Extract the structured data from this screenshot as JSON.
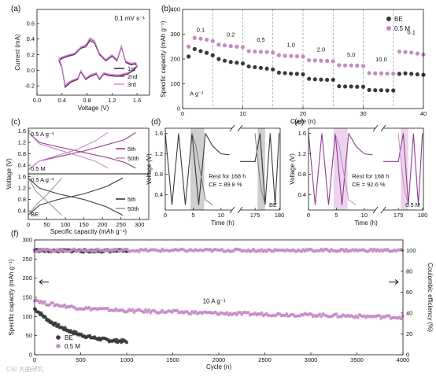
{
  "colors": {
    "be": "#3a3a3a",
    "be_light": "#9a9a9a",
    "m05": "#8e3d8e",
    "m05_light": "#c58ac5",
    "m05_pale": "#dcb8dc",
    "shade_grey": "#cfcfcf",
    "shade_pink": "#ecd3ec"
  },
  "watermark": "CSI 大曲研究",
  "chart_data": [
    {
      "id": "a",
      "panel": "(a)",
      "type": "line",
      "annotation": "0.1 mV s⁻¹",
      "xlabel": "Voltage (V)",
      "ylabel": "Current (mA)",
      "xlim": [
        0.0,
        1.8
      ],
      "ylim": [
        -0.32,
        0.78
      ],
      "xticks": [
        "0.0",
        "0.4",
        "0.8",
        "1.2",
        "1.6"
      ],
      "xtick_vals": [
        0,
        0.4,
        0.8,
        1.2,
        1.6
      ],
      "yticks": [
        "-0.2",
        "0.0",
        "0.2",
        "0.4",
        "0.6"
      ],
      "ytick_vals": [
        -0.2,
        0,
        0.2,
        0.4,
        0.6
      ],
      "series": [
        {
          "name": "1st",
          "color": "#5e1f5e",
          "x": [
            0.35,
            0.4,
            0.45,
            0.55,
            0.65,
            0.7,
            0.78,
            0.85,
            0.95,
            1.0,
            1.07,
            1.15,
            1.3,
            1.45,
            1.55,
            1.6,
            1.58,
            1.5,
            1.42,
            1.35,
            1.28,
            1.2,
            1.1,
            1.0,
            0.92,
            0.85,
            0.78,
            0.7,
            0.6,
            0.5,
            0.4,
            0.35
          ],
          "y": [
            0.12,
            0.03,
            -0.22,
            -0.15,
            -0.12,
            -0.02,
            -0.12,
            -0.08,
            -0.05,
            -0.12,
            -0.05,
            -0.07,
            -0.08,
            -0.05,
            0.0,
            0.05,
            0.08,
            0.07,
            0.1,
            0.3,
            0.12,
            0.18,
            0.12,
            0.2,
            0.35,
            0.38,
            0.3,
            0.28,
            0.2,
            0.18,
            0.15,
            0.12
          ]
        },
        {
          "name": "2nd",
          "color": "#9a4f9a",
          "x": [
            0.35,
            0.4,
            0.45,
            0.55,
            0.65,
            0.7,
            0.78,
            0.85,
            0.95,
            1.0,
            1.07,
            1.15,
            1.3,
            1.45,
            1.55,
            1.6,
            1.58,
            1.5,
            1.42,
            1.35,
            1.28,
            1.2,
            1.1,
            1.0,
            0.92,
            0.85,
            0.78,
            0.7,
            0.6,
            0.5,
            0.4,
            0.35
          ],
          "y": [
            0.14,
            0.04,
            -0.2,
            -0.14,
            -0.11,
            -0.01,
            -0.11,
            -0.07,
            -0.04,
            -0.11,
            -0.04,
            -0.06,
            -0.07,
            -0.04,
            0.01,
            0.06,
            0.09,
            0.08,
            0.11,
            0.3,
            0.13,
            0.19,
            0.13,
            0.21,
            0.37,
            0.4,
            0.32,
            0.29,
            0.21,
            0.19,
            0.16,
            0.14
          ]
        },
        {
          "name": "3rd",
          "color": "#d49ad4",
          "x": [
            0.35,
            0.4,
            0.45,
            0.55,
            0.65,
            0.7,
            0.78,
            0.85,
            0.95,
            1.0,
            1.07,
            1.15,
            1.3,
            1.45,
            1.55,
            1.6,
            1.58,
            1.5,
            1.42,
            1.35,
            1.28,
            1.2,
            1.1,
            1.0,
            0.92,
            0.85,
            0.78,
            0.7,
            0.6,
            0.5,
            0.4,
            0.35
          ],
          "y": [
            0.16,
            0.05,
            -0.18,
            -0.13,
            -0.1,
            0.0,
            -0.1,
            -0.06,
            -0.03,
            -0.1,
            -0.03,
            -0.05,
            -0.06,
            -0.03,
            0.02,
            0.07,
            0.1,
            0.09,
            0.12,
            0.32,
            0.14,
            0.2,
            0.14,
            0.22,
            0.38,
            0.42,
            0.33,
            0.3,
            0.22,
            0.2,
            0.17,
            0.16
          ]
        }
      ]
    },
    {
      "id": "b",
      "panel": "(b)",
      "type": "scatter",
      "xlabel": "Cycle (n)",
      "ylabel": "Specific capacity (mAh g⁻¹)",
      "xlim": [
        0,
        40
      ],
      "ylim": [
        0,
        400
      ],
      "xticks": [
        "0",
        "10",
        "20",
        "30",
        "40"
      ],
      "xtick_vals": [
        0,
        10,
        20,
        30,
        40
      ],
      "yticks": [
        "0",
        "100",
        "200",
        "300",
        "400"
      ],
      "ytick_vals": [
        0,
        100,
        200,
        300,
        400
      ],
      "unit_label": "A g⁻¹",
      "rate_labels": [
        {
          "text": "0.1",
          "x": 3
        },
        {
          "text": "0.2",
          "x": 8
        },
        {
          "text": "0.5",
          "x": 13
        },
        {
          "text": "1.0",
          "x": 18
        },
        {
          "text": "2.0",
          "x": 23
        },
        {
          "text": "5.0",
          "x": 28
        },
        {
          "text": "10.0",
          "x": 33
        },
        {
          "text": "0.1",
          "x": 38
        }
      ],
      "series": [
        {
          "name": "BE",
          "color": "#3a3a3a",
          "x": [
            1,
            2,
            3,
            4,
            5,
            6,
            7,
            8,
            9,
            10,
            11,
            12,
            13,
            14,
            15,
            16,
            17,
            18,
            19,
            20,
            21,
            22,
            23,
            24,
            25,
            26,
            27,
            28,
            29,
            30,
            31,
            32,
            33,
            34,
            35,
            36,
            37,
            38,
            39,
            40
          ],
          "y": [
            210,
            240,
            232,
            225,
            215,
            200,
            193,
            188,
            185,
            182,
            170,
            167,
            164,
            161,
            158,
            145,
            143,
            141,
            140,
            138,
            120,
            118,
            117,
            116,
            116,
            90,
            89,
            89,
            88,
            88,
            75,
            74,
            74,
            73,
            73,
            140,
            142,
            140,
            138,
            136
          ]
        },
        {
          "name": "0.5 M",
          "color": "#c58ac5",
          "x": [
            1,
            2,
            3,
            4,
            5,
            6,
            7,
            8,
            9,
            10,
            11,
            12,
            13,
            14,
            15,
            16,
            17,
            18,
            19,
            20,
            21,
            22,
            23,
            24,
            25,
            26,
            27,
            28,
            29,
            30,
            31,
            32,
            33,
            34,
            35,
            36,
            37,
            38,
            39,
            40
          ],
          "y": [
            250,
            285,
            282,
            278,
            272,
            258,
            255,
            252,
            250,
            248,
            232,
            230,
            229,
            228,
            226,
            215,
            213,
            212,
            211,
            210,
            195,
            194,
            193,
            192,
            191,
            175,
            174,
            174,
            173,
            172,
            143,
            142,
            142,
            141,
            141,
            230,
            228,
            226,
            222,
            218
          ]
        }
      ]
    },
    {
      "id": "c",
      "panel": "(c)",
      "type": "line",
      "xlabel": "Specific capacity (mAh g⁻¹)",
      "ylabel": "Voltage (V)",
      "xlim": [
        0,
        325
      ],
      "xticks": [
        "0",
        "50",
        "100",
        "150",
        "200",
        "250",
        "300"
      ],
      "xtick_vals": [
        0,
        50,
        100,
        150,
        200,
        250,
        300
      ],
      "yticks": [
        "0.4",
        "0.8",
        "1.2",
        "1.6"
      ],
      "ytick_vals": [
        0.4,
        0.8,
        1.2,
        1.6
      ],
      "top": {
        "rate": "0.5 A g⁻¹",
        "label": "0.5 M",
        "series": [
          {
            "name": "5th",
            "color": "#8e3d8e",
            "curves": [
              {
                "x": [
                  0,
                  30,
                  80,
                  150,
                  220,
                  260,
                  290
                ],
                "y": [
                  1.55,
                  1.2,
                  1.05,
                  0.85,
                  0.65,
                  0.5,
                  0.3
                ]
              },
              {
                "x": [
                  0,
                  30,
                  80,
                  150,
                  220,
                  260,
                  290
                ],
                "y": [
                  0.25,
                  0.55,
                  0.7,
                  0.9,
                  1.15,
                  1.3,
                  1.55
                ]
              }
            ]
          },
          {
            "name": "50th",
            "color": "#c58ac5",
            "curves": [
              {
                "x": [
                  0,
                  30,
                  80,
                  130,
                  180,
                  215
                ],
                "y": [
                  1.55,
                  1.15,
                  0.95,
                  0.75,
                  0.55,
                  0.3
                ]
              },
              {
                "x": [
                  0,
                  30,
                  80,
                  130,
                  180,
                  215
                ],
                "y": [
                  0.25,
                  0.55,
                  0.75,
                  0.95,
                  1.25,
                  1.55
                ]
              }
            ]
          }
        ]
      },
      "bottom": {
        "rate": "0.5 A g⁻¹",
        "label": "BE",
        "series": [
          {
            "name": "5th",
            "color": "#3a3a3a",
            "curves": [
              {
                "x": [
                  0,
                  30,
                  80,
                  150,
                  210,
                  255
                ],
                "y": [
                  1.55,
                  1.2,
                  1.0,
                  0.8,
                  0.55,
                  0.25
                ]
              },
              {
                "x": [
                  0,
                  30,
                  80,
                  150,
                  210,
                  255
                ],
                "y": [
                  0.25,
                  0.6,
                  0.8,
                  1.0,
                  1.25,
                  1.55
                ]
              }
            ]
          },
          {
            "name": "50th",
            "color": "#9a9a9a",
            "curves": [
              {
                "x": [
                  0,
                  20,
                  45,
                  70,
                  90
                ],
                "y": [
                  1.55,
                  1.1,
                  0.8,
                  0.5,
                  0.25
                ]
              },
              {
                "x": [
                  0,
                  20,
                  45,
                  70,
                  90
                ],
                "y": [
                  0.25,
                  0.6,
                  0.9,
                  1.25,
                  1.55
                ]
              }
            ]
          }
        ]
      }
    },
    {
      "id": "d",
      "panel": "(d)",
      "type": "line",
      "xlabel": "Time (h)",
      "ylabel": "Voltage (V)",
      "ylim": [
        0.1,
        1.7
      ],
      "xticks": [
        "0",
        "5",
        "10",
        "175",
        "180"
      ],
      "yticks": [
        "0.4",
        "0.8",
        "1.2",
        "1.6"
      ],
      "ytick_vals": [
        0.4,
        0.8,
        1.2,
        1.6
      ],
      "annotation1": "Rest for 168 h",
      "annotation2": "CE = 89.8 %",
      "label": "BE"
    },
    {
      "id": "e",
      "panel": "(e)",
      "type": "line",
      "xlabel": "Time (h)",
      "ylabel": "Voltage (V)",
      "ylim": [
        0.1,
        1.7
      ],
      "xticks": [
        "0",
        "5",
        "10",
        "175",
        "180"
      ],
      "yticks": [
        "0.4",
        "0.8",
        "1.2",
        "1.6"
      ],
      "ytick_vals": [
        0.4,
        0.8,
        1.2,
        1.6
      ],
      "annotation1": "Rest for 168 h",
      "annotation2": "CE = 92.6 %",
      "label": "0.5 M"
    },
    {
      "id": "f",
      "panel": "(f)",
      "type": "scatter",
      "xlabel": "Cycle (n)",
      "ylabel": "Specific capacity (mAh g⁻¹)",
      "y2label": "Coulombic efficiency (%)",
      "xlim": [
        0,
        4000
      ],
      "ylim": [
        0,
        300
      ],
      "y2lim": [
        0,
        110
      ],
      "xticks": [
        "0",
        "500",
        "1000",
        "1500",
        "2000",
        "2500",
        "3000",
        "3500",
        "4000"
      ],
      "xtick_vals": [
        0,
        500,
        1000,
        1500,
        2000,
        2500,
        3000,
        3500,
        4000
      ],
      "yticks": [
        "0",
        "50",
        "100",
        "150",
        "200",
        "250",
        "300"
      ],
      "ytick_vals": [
        0,
        50,
        100,
        150,
        200,
        250,
        300
      ],
      "y2ticks": [
        "0",
        "20",
        "40",
        "60",
        "80",
        "100"
      ],
      "y2tick_vals": [
        0,
        20,
        40,
        60,
        80,
        100
      ],
      "rate": "10 A g⁻¹",
      "series": [
        {
          "name": "BE",
          "color": "#3a3a3a",
          "kind": "capacity",
          "x": [
            0,
            50,
            100,
            150,
            200,
            300,
            400,
            500,
            600,
            700,
            800,
            900,
            1000
          ],
          "y": [
            120,
            110,
            100,
            90,
            82,
            70,
            60,
            52,
            46,
            42,
            38,
            36,
            35
          ]
        },
        {
          "name": "0.5 M",
          "color": "#c58ac5",
          "kind": "capacity",
          "x": [
            0,
            100,
            300,
            500,
            1000,
            1500,
            2000,
            2500,
            3000,
            3500,
            4000
          ],
          "y": [
            145,
            135,
            128,
            122,
            115,
            112,
            108,
            106,
            104,
            101,
            98
          ]
        },
        {
          "name": "BE CE",
          "color": "#3a3a3a",
          "kind": "ce",
          "x": [
            0,
            200,
            400,
            600,
            800,
            1000
          ],
          "y": [
            100,
            99.5,
            99.7,
            99.4,
            99.6,
            99.5
          ]
        },
        {
          "name": "0.5 M CE",
          "color": "#c58ac5",
          "kind": "ce",
          "x": [
            0,
            1000,
            2000,
            3000,
            4000
          ],
          "y": [
            100,
            100,
            100,
            100,
            100
          ]
        }
      ]
    }
  ]
}
